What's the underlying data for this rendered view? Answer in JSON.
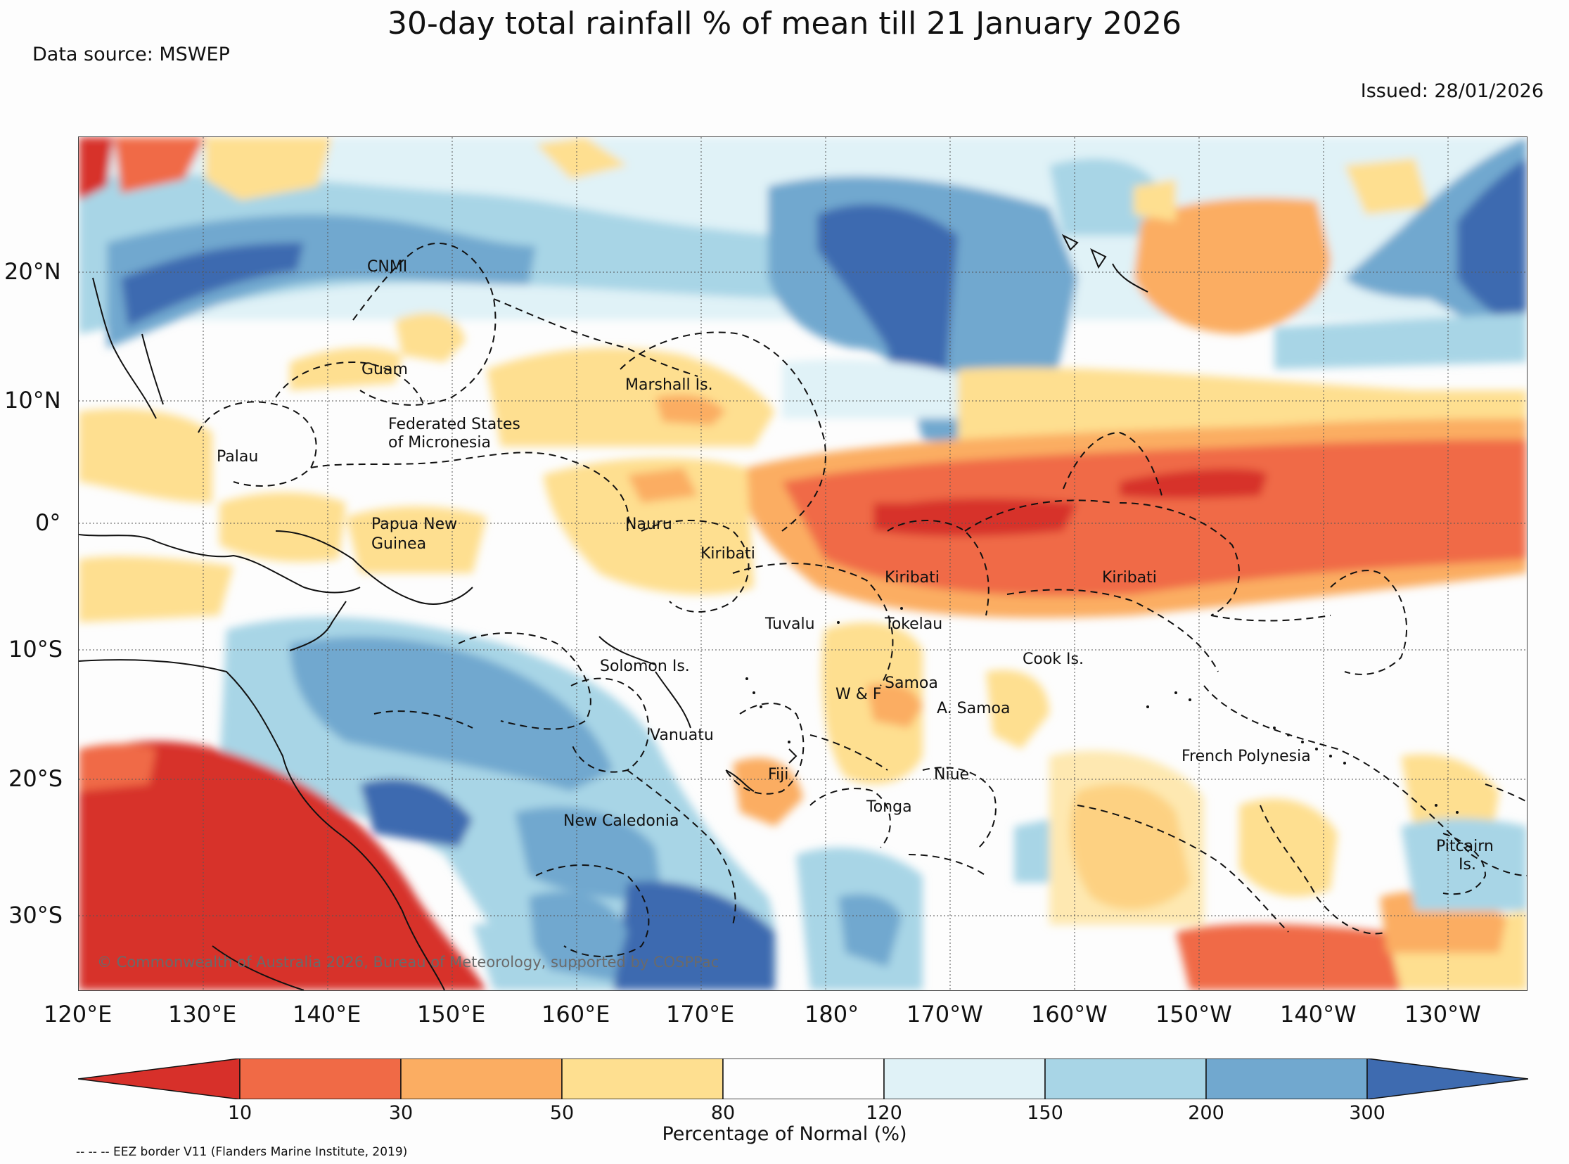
{
  "title": "30-day total rainfall % of mean till 21 January 2026",
  "data_source": "Data source: MSWEP",
  "issued": "Issued: 28/01/2026",
  "lat_labels": [
    "20°N",
    "10°N",
    "0°",
    "10°S",
    "20°S",
    "30°S"
  ],
  "lon_labels": [
    "120°E",
    "130°E",
    "140°E",
    "150°E",
    "160°E",
    "170°E",
    "180°",
    "170°W",
    "160°W",
    "150°W",
    "140°W",
    "130°W"
  ],
  "places": {
    "cnmi": "CNMI",
    "guam": "Guam",
    "marshall": "Marshall Is.",
    "fsm1": "Federated States",
    "fsm2": "of Micronesia",
    "palau": "Palau",
    "png1": "Papua New",
    "png2": "Guinea",
    "nauru": "Nauru",
    "kiribati_w": "Kiribati",
    "kiribati_c": "Kiribati",
    "kiribati_e": "Kiribati",
    "tuvalu": "Tuvalu",
    "tokelau": "Tokelau",
    "cook": "Cook Is.",
    "solomon": "Solomon Is.",
    "samoa": "Samoa",
    "wf": "W & F",
    "asamoa": "A. Samoa",
    "vanuatu": "Vanuatu",
    "fiji": "Fiji",
    "niue": "Niue",
    "tonga": "Tonga",
    "newcal": "New Caledonia",
    "frpoly": "French Polynesia",
    "pitcairn1": "Pitcairn",
    "pitcairn2": "Is."
  },
  "copyright": "© Commonwealth of Australia 2026, Bureau of Meteorology, supported by COSPPac",
  "colorbar": {
    "title": "Percentage of Normal (%)",
    "ticks": [
      "10",
      "30",
      "50",
      "80",
      "120",
      "150",
      "200",
      "300"
    ],
    "colors": [
      "#d7302a",
      "#f06a46",
      "#fbad62",
      "#fedf90",
      "#fdfdfd",
      "#e0f2f7",
      "#a8d5e6",
      "#71a8cf",
      "#3e6bb0"
    ]
  },
  "eez_legend": "-- -- -- EEZ border V11 (Flanders Marine Institute, 2019)"
}
